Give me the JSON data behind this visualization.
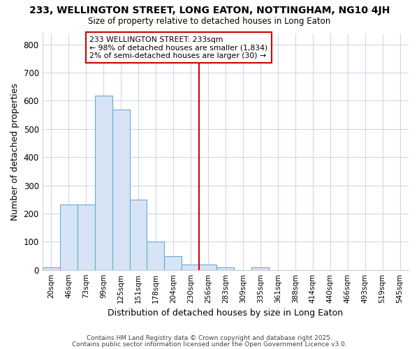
{
  "title1": "233, WELLINGTON STREET, LONG EATON, NOTTINGHAM, NG10 4JH",
  "title2": "Size of property relative to detached houses in Long Eaton",
  "xlabel": "Distribution of detached houses by size in Long Eaton",
  "ylabel": "Number of detached properties",
  "bin_labels": [
    "20sqm",
    "46sqm",
    "73sqm",
    "99sqm",
    "125sqm",
    "151sqm",
    "178sqm",
    "204sqm",
    "230sqm",
    "256sqm",
    "283sqm",
    "309sqm",
    "335sqm",
    "361sqm",
    "388sqm",
    "414sqm",
    "440sqm",
    "466sqm",
    "493sqm",
    "519sqm",
    "545sqm"
  ],
  "bar_values": [
    8,
    232,
    232,
    618,
    570,
    250,
    100,
    48,
    20,
    20,
    8,
    0,
    8,
    0,
    0,
    0,
    0,
    0,
    0,
    0,
    0
  ],
  "bar_color": "#d6e4f5",
  "bar_edge_color": "#6aabd2",
  "vline_x": 8.5,
  "vline_color": "#cc0000",
  "annotation_text": "233 WELLINGTON STREET: 233sqm\n← 98% of detached houses are smaller (1,834)\n2% of semi-detached houses are larger (30) →",
  "annotation_box_color": "#ffffff",
  "annotation_box_edge": "#cc0000",
  "ylim": [
    0,
    840
  ],
  "yticks": [
    0,
    100,
    200,
    300,
    400,
    500,
    600,
    700,
    800
  ],
  "plot_bg_color": "#ffffff",
  "fig_bg_color": "#ffffff",
  "grid_color": "#d0d8e8",
  "footer1": "Contains HM Land Registry data © Crown copyright and database right 2025.",
  "footer2": "Contains public sector information licensed under the Open Government Licence v3.0."
}
